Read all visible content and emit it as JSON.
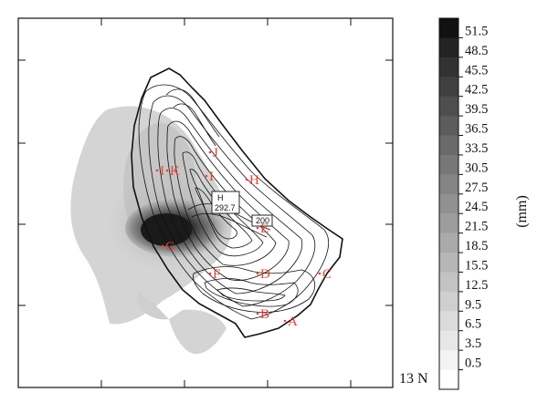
{
  "map": {
    "latitude_label": "13 N",
    "stations": [
      {
        "label": "A"
      },
      {
        "label": "B"
      },
      {
        "label": "C"
      },
      {
        "label": "D"
      },
      {
        "label": "E"
      },
      {
        "label": "F"
      },
      {
        "label": "G"
      },
      {
        "label": "H"
      },
      {
        "label": "I"
      },
      {
        "label": "J"
      },
      {
        "label": "K"
      },
      {
        "label": "I"
      }
    ],
    "annotations": {
      "max_marker": "H",
      "max_value": "292.7",
      "contour_label": "200"
    }
  },
  "colorbar": {
    "unit": "(mm)",
    "ticks": [
      "51.5",
      "48.5",
      "45.5",
      "42.5",
      "39.5",
      "36.5",
      "33.5",
      "30.5",
      "27.5",
      "24.5",
      "21.5",
      "18.5",
      "15.5",
      "12.5",
      "9.5",
      "6.5",
      "3.5",
      "0.5"
    ]
  },
  "colors": {
    "station": "#e8423a",
    "outline": "#111111",
    "shade_light": "#d6d6d6",
    "shade_dark": "#111111"
  }
}
